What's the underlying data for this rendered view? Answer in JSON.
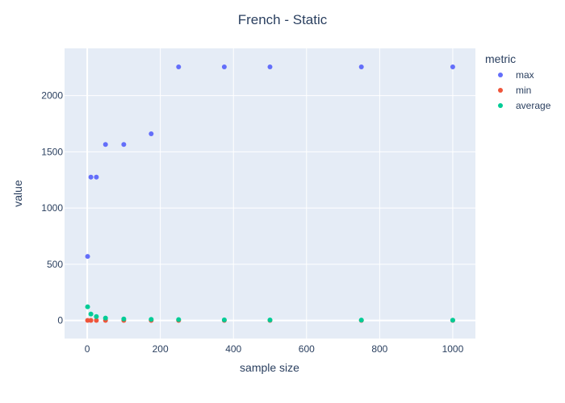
{
  "chart_data": {
    "type": "scatter",
    "title": "French - Static",
    "xlabel": "sample size",
    "ylabel": "value",
    "xlim": [
      -62,
      1062
    ],
    "ylim": [
      -160,
      2420
    ],
    "xticks": [
      0,
      200,
      400,
      600,
      800,
      1000
    ],
    "yticks": [
      0,
      500,
      1000,
      1500,
      2000
    ],
    "grid": true,
    "legend_title": "metric",
    "legend_position": "right",
    "series": [
      {
        "name": "max",
        "color": "#636efa",
        "points": [
          {
            "x": 1,
            "y": 570
          },
          {
            "x": 10,
            "y": 1275
          },
          {
            "x": 25,
            "y": 1275
          },
          {
            "x": 50,
            "y": 1565
          },
          {
            "x": 100,
            "y": 1565
          },
          {
            "x": 175,
            "y": 1660
          },
          {
            "x": 250,
            "y": 2255
          },
          {
            "x": 375,
            "y": 2255
          },
          {
            "x": 500,
            "y": 2255
          },
          {
            "x": 750,
            "y": 2255
          },
          {
            "x": 1000,
            "y": 2255
          }
        ]
      },
      {
        "name": "min",
        "color": "#ef553b",
        "points": [
          {
            "x": 1,
            "y": 1
          },
          {
            "x": 10,
            "y": 1
          },
          {
            "x": 25,
            "y": 1
          },
          {
            "x": 50,
            "y": 1
          },
          {
            "x": 100,
            "y": 1
          },
          {
            "x": 175,
            "y": 1
          },
          {
            "x": 250,
            "y": 1
          },
          {
            "x": 375,
            "y": 1
          },
          {
            "x": 500,
            "y": 1
          },
          {
            "x": 750,
            "y": 1
          },
          {
            "x": 1000,
            "y": 1
          }
        ]
      },
      {
        "name": "average",
        "color": "#00cc96",
        "points": [
          {
            "x": 1,
            "y": 122
          },
          {
            "x": 10,
            "y": 58
          },
          {
            "x": 25,
            "y": 35
          },
          {
            "x": 50,
            "y": 22
          },
          {
            "x": 100,
            "y": 14
          },
          {
            "x": 175,
            "y": 10
          },
          {
            "x": 250,
            "y": 8
          },
          {
            "x": 375,
            "y": 6
          },
          {
            "x": 500,
            "y": 5
          },
          {
            "x": 750,
            "y": 4
          },
          {
            "x": 1000,
            "y": 3
          }
        ]
      }
    ],
    "colors": {
      "plot_background": "#e5ecf6",
      "grid": "#ffffff",
      "text": "#2a3f5f"
    }
  }
}
